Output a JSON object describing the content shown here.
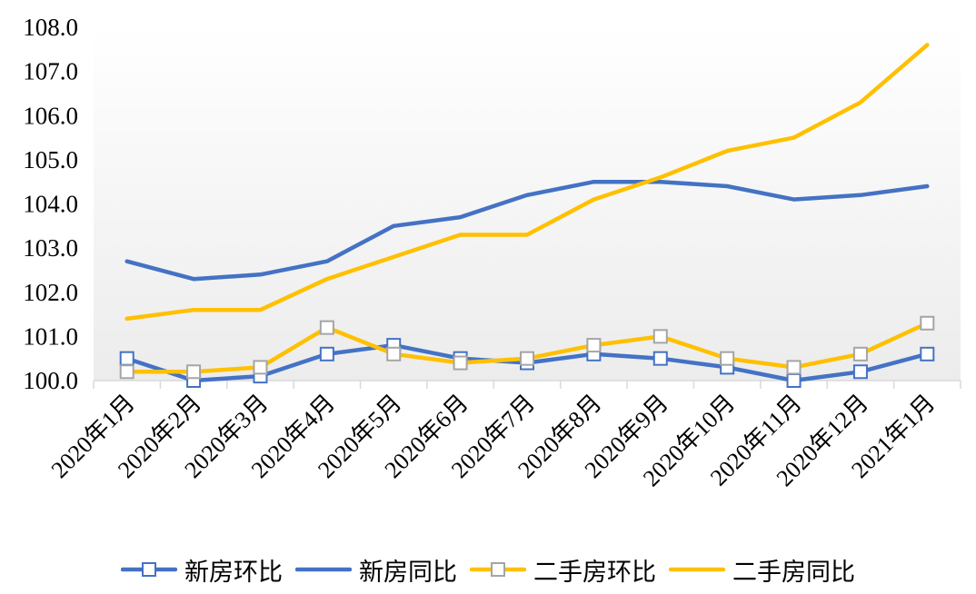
{
  "chart_data": {
    "type": "line",
    "categories": [
      "2020年1月",
      "2020年2月",
      "2020年3月",
      "2020年4月",
      "2020年5月",
      "2020年6月",
      "2020年7月",
      "2020年8月",
      "2020年9月",
      "2020年10月",
      "2020年11月",
      "2020年12月",
      "2021年1月"
    ],
    "ylim": [
      100.0,
      108.0
    ],
    "yticks": [
      "100.0",
      "101.0",
      "102.0",
      "103.0",
      "104.0",
      "105.0",
      "106.0",
      "107.0",
      "108.0"
    ],
    "grid": false,
    "legend_position": "bottom",
    "series": [
      {
        "name": "新房环比",
        "color": "#4472C4",
        "marker": "square",
        "values": [
          100.5,
          100.0,
          100.1,
          100.6,
          100.8,
          100.5,
          100.4,
          100.6,
          100.5,
          100.3,
          100.0,
          100.2,
          100.6
        ]
      },
      {
        "name": "新房同比",
        "color": "#4472C4",
        "marker": "none",
        "values": [
          102.7,
          102.3,
          102.4,
          102.7,
          103.5,
          103.7,
          104.2,
          104.5,
          104.5,
          104.4,
          104.1,
          104.2,
          104.4
        ]
      },
      {
        "name": "二手房环比",
        "color": "#FFC000",
        "marker": "square",
        "values": [
          100.2,
          100.2,
          100.3,
          101.2,
          100.6,
          100.4,
          100.5,
          100.8,
          101.0,
          100.5,
          100.3,
          100.6,
          101.3
        ]
      },
      {
        "name": "二手房同比",
        "color": "#FFC000",
        "marker": "none",
        "values": [
          101.4,
          101.6,
          101.6,
          102.3,
          102.8,
          103.3,
          103.3,
          104.1,
          104.6,
          105.2,
          105.5,
          106.3,
          107.6
        ]
      }
    ]
  }
}
